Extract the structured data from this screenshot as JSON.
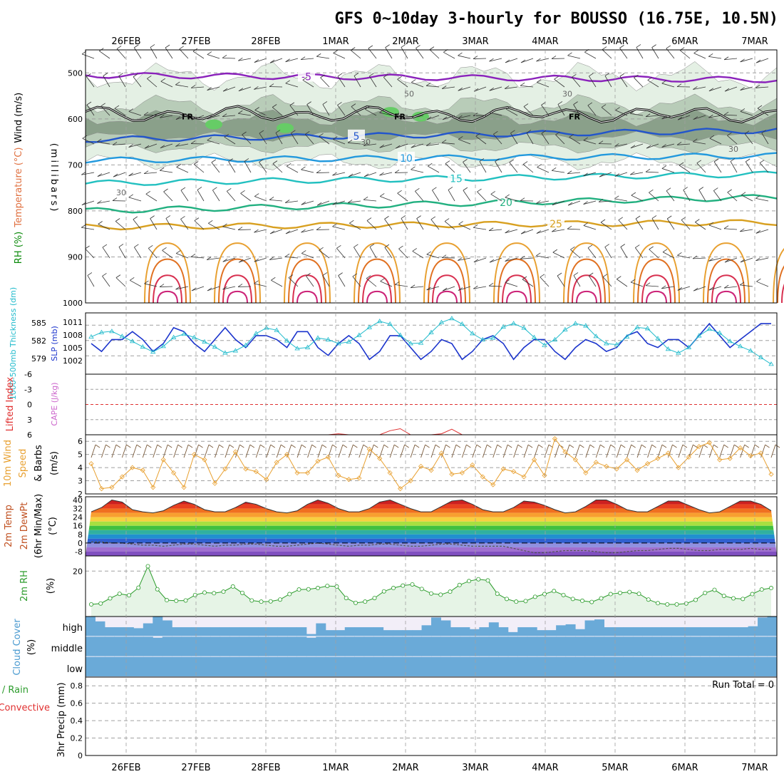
{
  "header": {
    "title": "GFS 0~10day 3-hourly for BOUSSO (16.75E, 10.5N)"
  },
  "colors": {
    "grid": "#a0a0a0",
    "rh_light": "#e4f0e4",
    "rh_mid": "#b8ccb8",
    "rh_dark": "#8aa08a",
    "rh_bright": "#66cc66",
    "slp": "#1a33cc",
    "thickness": "#22bbcc",
    "wind10": "#e8a030",
    "barb": "#7a5a3a",
    "rh2m": "#2c9c2c",
    "rh2m_fill": "#e6f4e6",
    "cloud": "#6aaad8",
    "cloud_bg": "#f2eef8",
    "li": "#e03030",
    "cape": "#cc66cc",
    "rain": "#2c9c2c",
    "conv": "#e03030"
  },
  "chart_data": [
    {
      "id": "panel-profile",
      "type": "heatmap",
      "title": "",
      "ylabel_parts": [
        "RH (%)",
        "Temperature (°C)",
        "Wind (m/s)"
      ],
      "ylabel2": "(millibars)",
      "yticks": [
        500,
        600,
        700,
        800,
        900,
        1000
      ],
      "ylim": [
        450,
        1000
      ],
      "freezing_label": "FR",
      "rh_labels": [
        "30",
        "50"
      ],
      "isotherms": [
        {
          "label": "-5",
          "color": "#8a22bb",
          "levels_mb": [
            505,
            515
          ]
        },
        {
          "label": "5",
          "color": "#2255cc",
          "levels_mb": [
            645,
            625
          ]
        },
        {
          "label": "10",
          "color": "#2299dd",
          "levels_mb": [
            690,
            680
          ]
        },
        {
          "label": "15",
          "color": "#22c0c0",
          "levels_mb": [
            740,
            720
          ]
        },
        {
          "label": "20",
          "color": "#22b080",
          "levels_mb": [
            800,
            770
          ]
        },
        {
          "label": "25",
          "color": "#d8a020",
          "levels_mb": [
            835,
            825
          ]
        }
      ]
    },
    {
      "id": "panel-slp",
      "type": "line",
      "ylabel_left": "1000-500mb Thickness (dm)",
      "ylabel_right": "SLP (mb)",
      "yticks_left": [
        "585",
        "582",
        "579"
      ],
      "yticks_right": [
        "1011",
        "1008",
        "1005",
        "1002"
      ],
      "series": [
        {
          "name": "SLP (mb)",
          "ylim": [
            999,
            1013
          ],
          "values": [
            1006,
            1004,
            1007,
            1007,
            1009,
            1007,
            1004,
            1006,
            1010,
            1009,
            1006,
            1004,
            1007,
            1010,
            1007,
            1005,
            1008,
            1008,
            1007,
            1005,
            1009,
            1009,
            1005,
            1003,
            1006,
            1008,
            1006,
            1002,
            1004,
            1008,
            1008,
            1005,
            1002,
            1004,
            1007,
            1006,
            1002,
            1004,
            1007,
            1008,
            1006,
            1002,
            1005,
            1007,
            1007,
            1004,
            1002,
            1005,
            1007,
            1006,
            1004,
            1005,
            1008,
            1009,
            1006,
            1005,
            1007,
            1007,
            1005,
            1008,
            1011,
            1008,
            1005,
            1007,
            1009,
            1011,
            1011
          ]
        },
        {
          "name": "1000-500mb Thickness (dm)",
          "ylim": [
            576.5,
            586.5
          ],
          "values": [
            582.7,
            583.5,
            583.7,
            582.8,
            581.9,
            580.9,
            580.0,
            581.0,
            582.6,
            583.2,
            582.6,
            581.8,
            580.9,
            579.8,
            580.2,
            581.2,
            583.3,
            584.3,
            583.9,
            582.0,
            580.6,
            580.8,
            582.5,
            582.2,
            581.5,
            581.8,
            583.0,
            584.4,
            585.5,
            585.0,
            583.0,
            581.5,
            581.6,
            583.5,
            585.3,
            586.0,
            585.0,
            583.3,
            582.2,
            582.5,
            584.5,
            585.1,
            584.3,
            582.6,
            581.2,
            582.2,
            584.0,
            585.1,
            584.7,
            582.8,
            581.5,
            581.3,
            582.7,
            584.4,
            584.2,
            582.4,
            580.5,
            579.8,
            580.8,
            582.9,
            584.1,
            583.4,
            581.9,
            581.0,
            580.2,
            579.0,
            577.8
          ]
        }
      ]
    },
    {
      "id": "panel-li",
      "type": "line",
      "ylabel_left": "Lifted Index",
      "ylabel_right": "CAPE (J/kg)",
      "yticks": [
        "-6",
        "-3",
        "0",
        "3",
        "6"
      ],
      "ylim": [
        -6,
        6
      ],
      "series": [
        {
          "name": "Lifted Index",
          "values": [
            6,
            6,
            6,
            6,
            6,
            6,
            6,
            6,
            6,
            6,
            6,
            6,
            6,
            6,
            6,
            6,
            6,
            6,
            6,
            6,
            6,
            6,
            6,
            6,
            5.8,
            6,
            6,
            6,
            6,
            5.2,
            4.8,
            6,
            6,
            6,
            5.8,
            4.9,
            6,
            6,
            6,
            6,
            6,
            6,
            6,
            6,
            6,
            6,
            6,
            6,
            6,
            6,
            6,
            6,
            6,
            6,
            6,
            6,
            6,
            6,
            6,
            6,
            6,
            6,
            6,
            6,
            6,
            6,
            6
          ]
        }
      ]
    },
    {
      "id": "panel-wind10",
      "type": "line",
      "ylabel_parts": [
        "10m Wind",
        "Speed",
        "(m/s)",
        "& Barbs"
      ],
      "yticks": [
        "6",
        "5",
        "4",
        "3",
        "2"
      ],
      "ylim": [
        2,
        6.5
      ],
      "series": [
        {
          "name": "10m Wind Speed",
          "values": [
            4.3,
            2.4,
            2.5,
            3.3,
            4.0,
            3.8,
            2.5,
            4.6,
            3.6,
            2.5,
            5.0,
            4.6,
            2.8,
            3.9,
            5.2,
            3.9,
            3.7,
            3.1,
            4.4,
            5.0,
            3.6,
            3.6,
            4.5,
            4.8,
            3.4,
            3.1,
            3.2,
            5.4,
            4.7,
            3.6,
            2.4,
            3.0,
            4.1,
            3.8,
            5.1,
            3.5,
            3.6,
            4.2,
            3.3,
            2.7,
            3.9,
            3.7,
            3.3,
            4.6,
            3.4,
            6.2,
            5.2,
            4.6,
            3.6,
            4.4,
            4.1,
            3.9,
            4.6,
            3.8,
            4.3,
            4.7,
            5.1,
            4.0,
            4.8,
            5.6,
            5.9,
            4.6,
            4.7,
            5.5,
            4.9,
            5.1,
            3.5
          ]
        }
      ]
    },
    {
      "id": "panel-temp",
      "type": "area",
      "ylabel_parts": [
        "2m Temp",
        "2m DewPt",
        "(6hr Min/Max)",
        "(°C)"
      ],
      "yticks": [
        "40",
        "32",
        "24",
        "16",
        "8",
        "0",
        "-8"
      ],
      "ylim": [
        -12,
        43
      ],
      "series": [
        {
          "name": "2m Temp",
          "values": [
            29,
            33,
            40,
            38,
            31,
            29,
            28,
            30,
            35,
            39,
            36,
            31,
            29,
            29,
            33,
            38,
            36,
            32,
            29,
            28,
            30,
            36,
            40,
            37,
            32,
            29,
            29,
            32,
            38,
            40,
            36,
            32,
            29,
            29,
            34,
            39,
            40,
            36,
            31,
            29,
            29,
            33,
            39,
            38,
            35,
            31,
            28,
            29,
            34,
            40,
            40,
            36,
            31,
            29,
            29,
            34,
            39,
            39,
            35,
            31,
            28,
            29,
            34,
            39,
            39,
            36,
            30
          ]
        },
        {
          "name": "2m DewPt",
          "values": [
            1,
            1,
            0,
            0,
            -1,
            -2,
            -2,
            -3,
            -2,
            -1,
            -1,
            -2,
            -3,
            -2,
            -2,
            -1,
            -1,
            -2,
            -3,
            -3,
            -2,
            -1,
            0,
            -1,
            -2,
            -3,
            -2,
            -2,
            -1,
            -1,
            -2,
            -3,
            -3,
            -2,
            -1,
            -1,
            -2,
            -3,
            -3,
            -3,
            -3,
            -5,
            -7,
            -9,
            -9,
            -8,
            -7,
            -7,
            -7,
            -8,
            -9,
            -9,
            -8,
            -7,
            -7,
            -6,
            -5,
            -5,
            -6,
            -7,
            -7,
            -6,
            -6,
            -6,
            -5,
            -6,
            -6
          ]
        }
      ]
    },
    {
      "id": "panel-rh2m",
      "type": "area",
      "ylabel_parts": [
        "2m RH",
        "(%)"
      ],
      "yticks": [
        "20"
      ],
      "ylim": [
        5,
        25
      ],
      "series": [
        {
          "name": "2m RH",
          "values": [
            9.0,
            9.3,
            11.0,
            12.5,
            12.0,
            14.5,
            21.6,
            14.0,
            10.4,
            10.2,
            10.3,
            12.1,
            12.9,
            12.7,
            13.2,
            14.9,
            12.8,
            10.3,
            9.9,
            10.0,
            10.6,
            12.4,
            13.9,
            14.0,
            14.4,
            15.1,
            14.9,
            11.1,
            9.5,
            9.9,
            11.1,
            13.3,
            14.4,
            15.2,
            15.6,
            14.1,
            12.6,
            12.2,
            13.2,
            15.4,
            16.7,
            17.3,
            16.9,
            12.5,
            10.8,
            9.9,
            10.1,
            11.5,
            12.4,
            13.4,
            12.1,
            10.8,
            10.2,
            9.8,
            11.0,
            12.4,
            12.8,
            13.1,
            12.5,
            10.6,
            9.4,
            9.0,
            9.0,
            9.3,
            10.5,
            12.8,
            13.8,
            11.8,
            11.0,
            10.8,
            12.4,
            13.9,
            14.4
          ]
        }
      ]
    },
    {
      "id": "panel-cloud",
      "type": "area",
      "ylabel_parts": [
        "Cloud Cover",
        "(%)"
      ],
      "levels": [
        "high",
        "middle",
        "low"
      ],
      "series": [
        {
          "name": "high",
          "values": [
            100,
            75,
            45,
            45,
            45,
            40,
            65,
            100,
            80,
            45,
            45,
            45,
            45,
            45,
            45,
            45,
            45,
            45,
            45,
            45,
            45,
            45,
            45,
            10,
            65,
            30,
            30,
            45,
            45,
            45,
            45,
            30,
            30,
            30,
            30,
            55,
            95,
            80,
            45,
            45,
            35,
            45,
            70,
            45,
            20,
            45,
            45,
            30,
            30,
            55,
            60,
            35,
            80,
            85,
            45,
            45,
            45,
            45,
            45,
            45,
            45,
            45,
            45,
            45,
            45,
            45,
            45,
            45,
            45,
            50,
            95,
            100
          ]
        },
        {
          "name": "middle",
          "values": [
            100,
            100,
            100,
            100,
            100,
            100,
            100,
            95,
            100,
            100,
            100,
            100,
            100,
            100,
            100,
            100,
            100,
            100,
            100,
            100,
            100,
            100,
            100,
            95,
            100,
            100,
            100,
            100,
            100,
            100,
            100,
            100,
            100,
            100,
            100,
            100,
            100,
            100,
            100,
            100,
            100,
            100,
            100,
            100,
            100,
            100,
            100,
            100,
            100,
            100,
            100,
            100,
            100,
            100,
            100,
            100,
            100,
            100,
            100,
            100,
            100,
            100,
            100,
            100,
            100,
            100,
            100,
            100,
            100,
            100,
            100,
            100
          ]
        },
        {
          "name": "low",
          "values": [
            100,
            100,
            100,
            100,
            100,
            100,
            100,
            100,
            100,
            100,
            100,
            100,
            100,
            100,
            100,
            100,
            100,
            100,
            100,
            100,
            100,
            100,
            100,
            100,
            100,
            100,
            100,
            100,
            100,
            100,
            100,
            100,
            100,
            100,
            100,
            100,
            100,
            100,
            100,
            100,
            100,
            100,
            100,
            100,
            100,
            100,
            100,
            100,
            100,
            100,
            100,
            100,
            100,
            100,
            100,
            100,
            100,
            100,
            100,
            100,
            100,
            100,
            100,
            100,
            100,
            100,
            100,
            100,
            100,
            100,
            100,
            100
          ]
        }
      ]
    },
    {
      "id": "panel-precip",
      "type": "bar",
      "ylabel_parts": [
        "Total / Rain",
        "Convective",
        "3hr Precip (mm)"
      ],
      "yticks": [
        "0.8",
        "0.6",
        "0.4",
        "0.2",
        "0"
      ],
      "ylim": [
        0,
        0.9
      ],
      "run_total": "Run Total = 0",
      "series": [
        {
          "name": "3hr Precip (mm)",
          "values": []
        }
      ]
    }
  ],
  "xaxis": {
    "dates": [
      "26FEB",
      "27FEB",
      "28FEB",
      "1MAR",
      "2MAR",
      "3MAR",
      "4MAR",
      "5MAR",
      "6MAR",
      "7MAR"
    ]
  }
}
